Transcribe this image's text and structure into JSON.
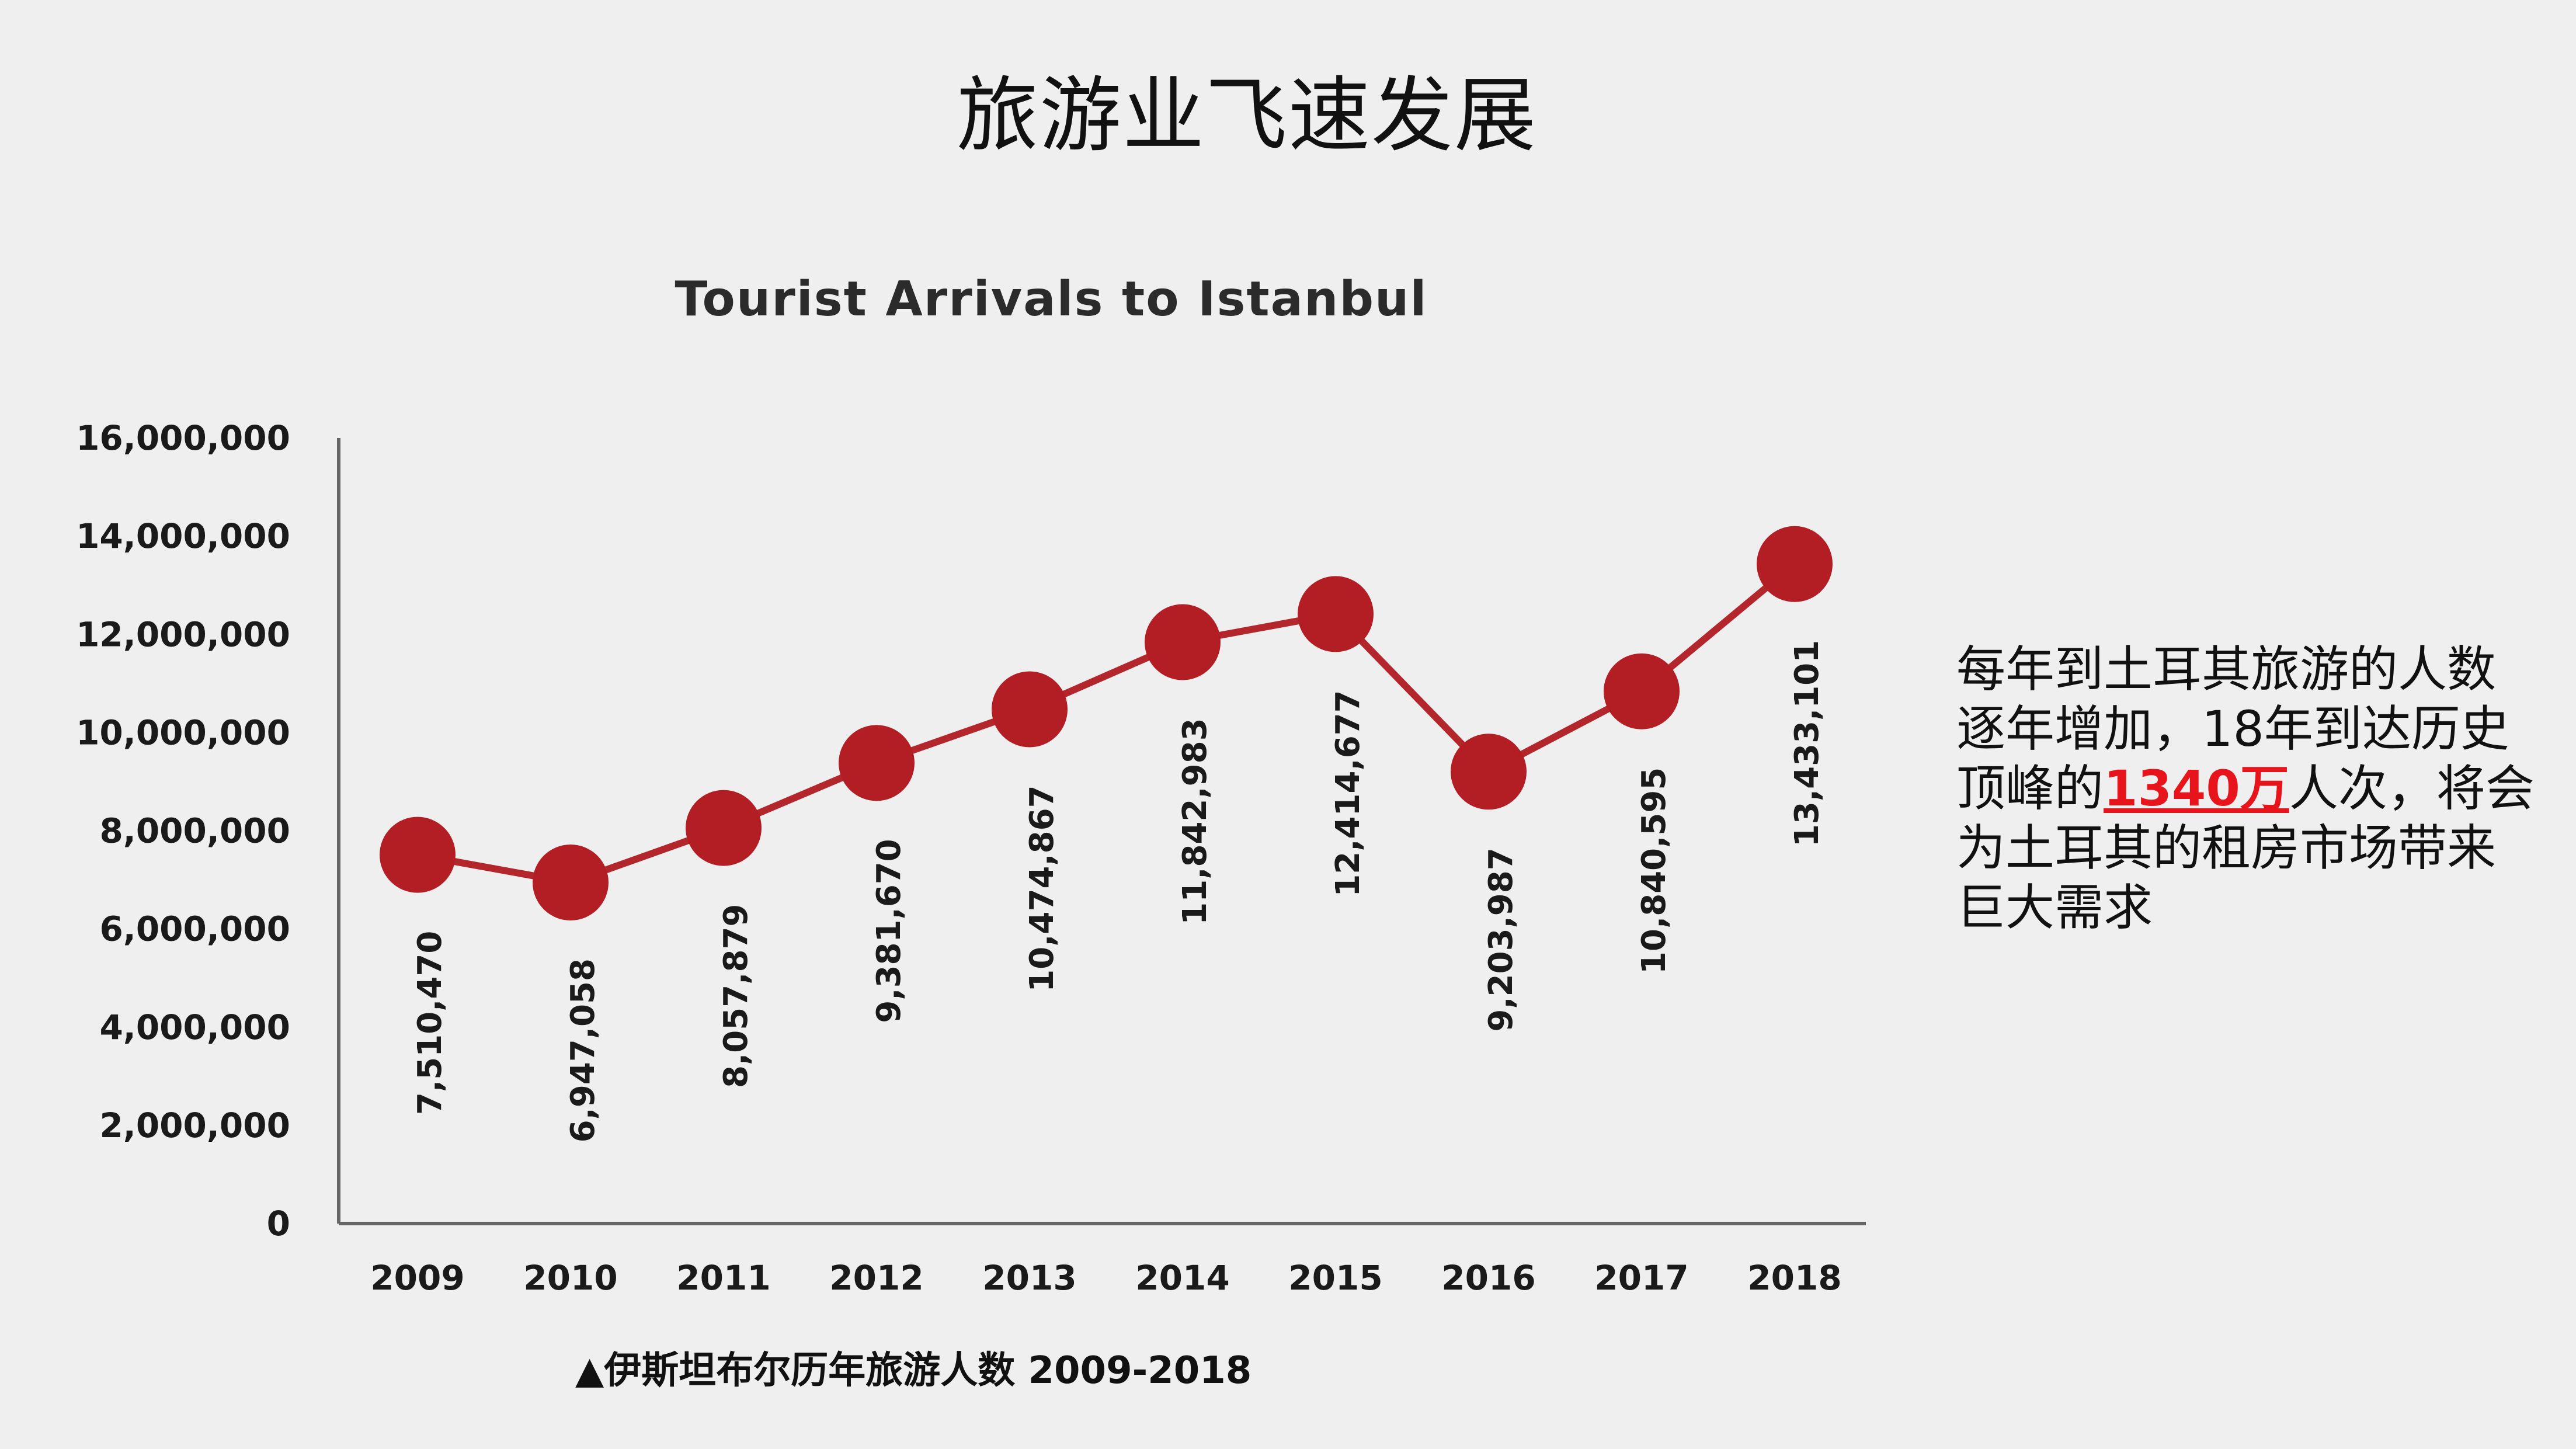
{
  "page": {
    "title": "旅游业飞速发展"
  },
  "chart_data": {
    "type": "line",
    "title": "Tourist  Arrivals to Istanbul",
    "xlabel": "",
    "ylabel": "",
    "categories": [
      "2009",
      "2010",
      "2011",
      "2012",
      "2013",
      "2014",
      "2015",
      "2016",
      "2017",
      "2018"
    ],
    "values": [
      7510470,
      6947058,
      8057879,
      9381670,
      10474867,
      11842983,
      12414677,
      9203987,
      10840595,
      13433101
    ],
    "value_labels": [
      "7,510,470",
      "6,947,058",
      "8,057,879",
      "9,381,670",
      "10,474,867",
      "11,842,983",
      "12,414,677",
      "9,203,987",
      "10,840,595",
      "13,433,101"
    ],
    "ylim": [
      0,
      16000000
    ],
    "yticks": [
      "0",
      "2,000,000",
      "4,000,000",
      "6,000,000",
      "8,000,000",
      "10,000,000",
      "12,000,000",
      "14,000,000",
      "16,000,000"
    ],
    "ytick_values": [
      0,
      2000000,
      4000000,
      6000000,
      8000000,
      10000000,
      12000000,
      14000000,
      16000000
    ],
    "grid": false,
    "legend": "none",
    "colors": {
      "line": "#b3262c",
      "marker": "#b21e24",
      "axis": "#666666"
    }
  },
  "caption": "▲伊斯坦布尔历年旅游人数 2009-2018",
  "side_note": {
    "before": "每年到土耳其旅游的人数逐年增加，18年到达历史顶峰的",
    "highlight": "1340万",
    "after": "人次，将会为土耳其的租房市场带来巨大需求",
    "highlight_color": "#e8141b"
  }
}
